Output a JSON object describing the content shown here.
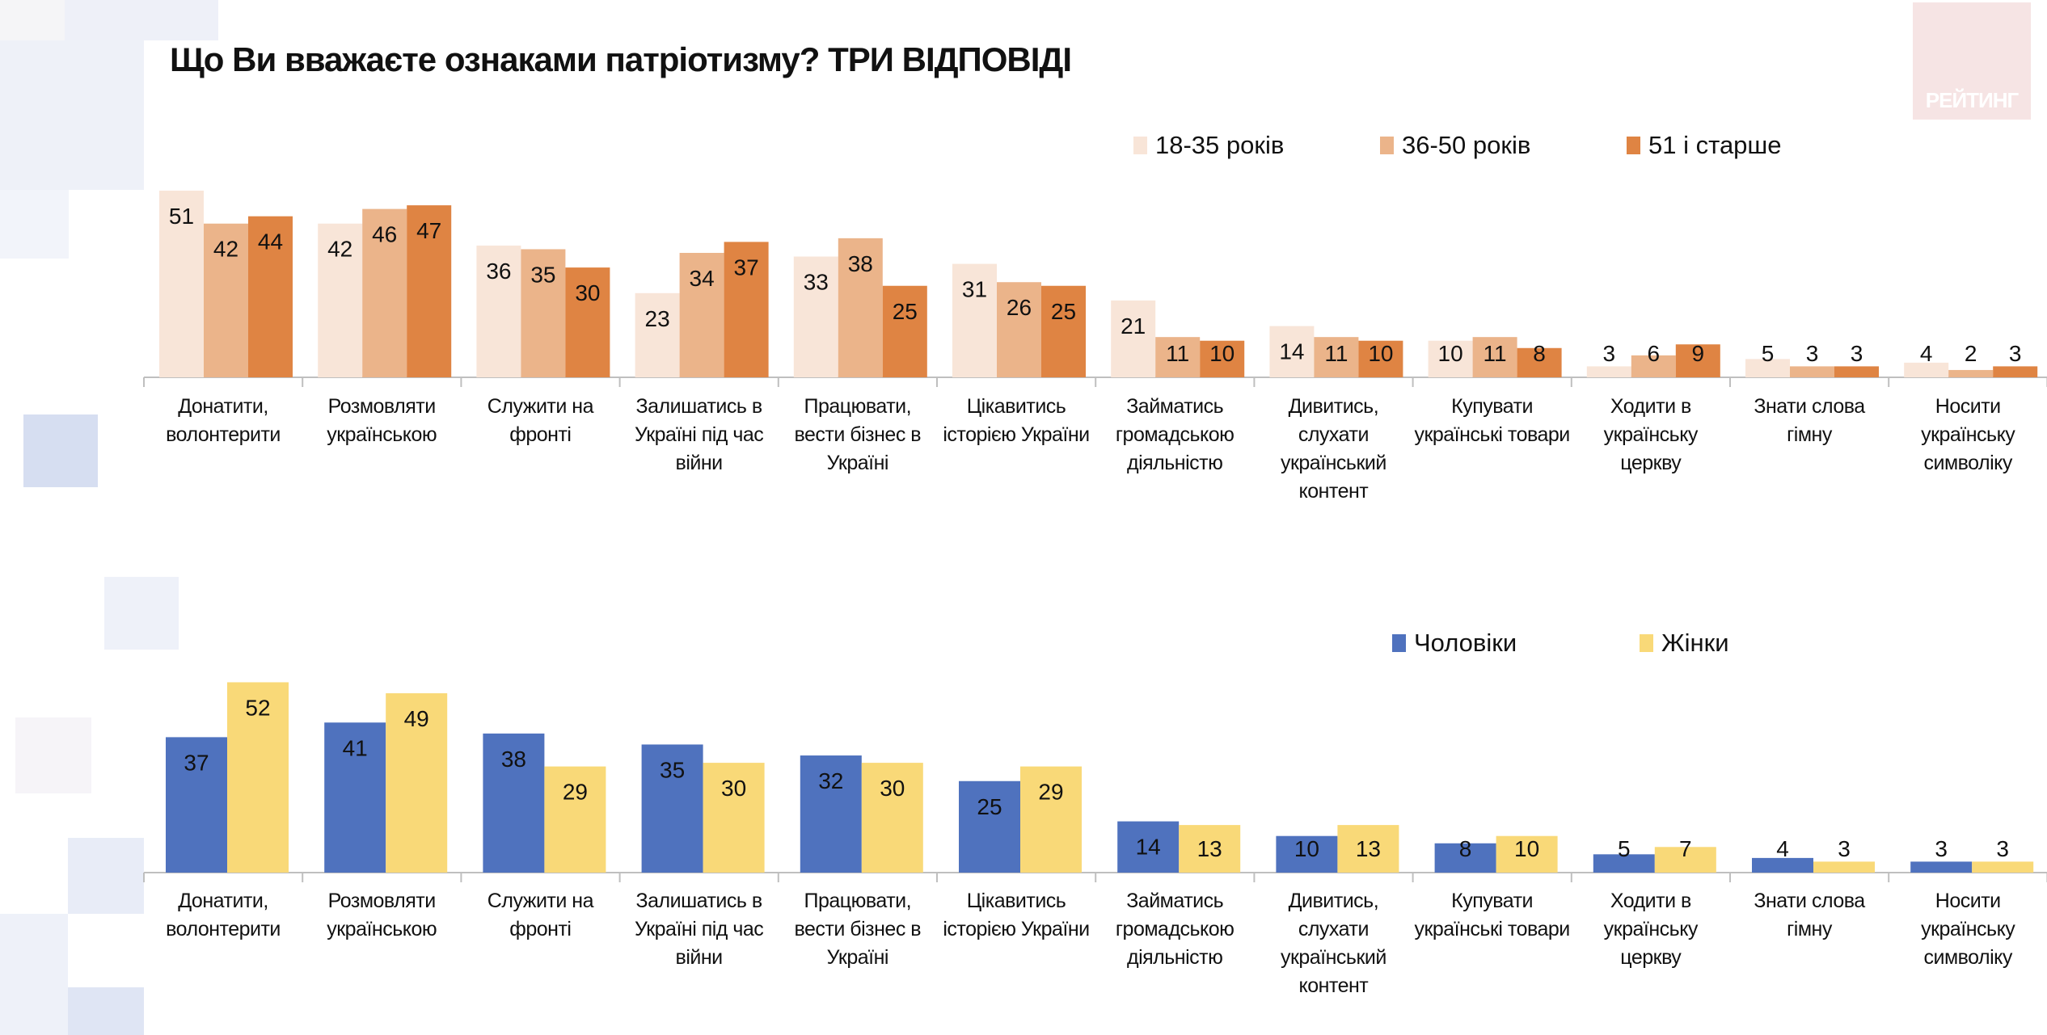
{
  "title": "Що Ви вважаєте ознаками патріотизму? ТРИ ВІДПОВІДІ",
  "logo_text": "РЕЙТИНГ",
  "chart_data": [
    {
      "type": "bar",
      "categories": [
        [
          "Донатити,",
          "волонтерити"
        ],
        [
          "Розмовляти",
          "українською"
        ],
        [
          "Служити на",
          "фронті"
        ],
        [
          "Залишатись в",
          "Україні під час",
          "війни"
        ],
        [
          "Працювати,",
          "вести бізнес в",
          "Україні"
        ],
        [
          "Цікавитись",
          "історією України"
        ],
        [
          "Займатись",
          "громадською",
          "діяльністю"
        ],
        [
          "Дивитись,",
          "слухати",
          "український",
          "контент"
        ],
        [
          "Купувати",
          "українські товари"
        ],
        [
          "Ходити в",
          "українську",
          "церкву"
        ],
        [
          "Знати слова",
          "гімну"
        ],
        [
          "Носити",
          "українську",
          "символіку"
        ]
      ],
      "series": [
        {
          "name": "18-35 років",
          "color": "#F8E5D8",
          "values": [
            51,
            42,
            36,
            23,
            33,
            31,
            21,
            14,
            10,
            3,
            5,
            4
          ]
        },
        {
          "name": "36-50 років",
          "color": "#EBB48A",
          "values": [
            42,
            46,
            35,
            34,
            38,
            26,
            11,
            11,
            11,
            6,
            3,
            2
          ]
        },
        {
          "name": "51 і старше",
          "color": "#DF8443",
          "values": [
            44,
            47,
            30,
            37,
            25,
            25,
            10,
            10,
            8,
            9,
            3,
            3
          ]
        }
      ],
      "legend_position": "top-right",
      "grid": false
    },
    {
      "type": "bar",
      "categories": [
        [
          "Донатити,",
          "волонтерити"
        ],
        [
          "Розмовляти",
          "українською"
        ],
        [
          "Служити на",
          "фронті"
        ],
        [
          "Залишатись в",
          "Україні під час",
          "війни"
        ],
        [
          "Працювати,",
          "вести бізнес в",
          "Україні"
        ],
        [
          "Цікавитись",
          "історією України"
        ],
        [
          "Займатись",
          "громадською",
          "діяльністю"
        ],
        [
          "Дивитись,",
          "слухати",
          "український",
          "контент"
        ],
        [
          "Купувати",
          "українські товари"
        ],
        [
          "Ходити в",
          "українську",
          "церкву"
        ],
        [
          "Знати слова",
          "гімну"
        ],
        [
          "Носити",
          "українську",
          "символіку"
        ]
      ],
      "series": [
        {
          "name": "Чоловіки",
          "color": "#4F72BE",
          "values": [
            37,
            41,
            38,
            35,
            32,
            25,
            14,
            10,
            8,
            5,
            4,
            3
          ]
        },
        {
          "name": "Жінки",
          "color": "#F9D978",
          "values": [
            52,
            49,
            29,
            30,
            30,
            29,
            13,
            13,
            10,
            7,
            3,
            3
          ]
        }
      ],
      "legend_position": "top-right",
      "grid": false
    }
  ]
}
